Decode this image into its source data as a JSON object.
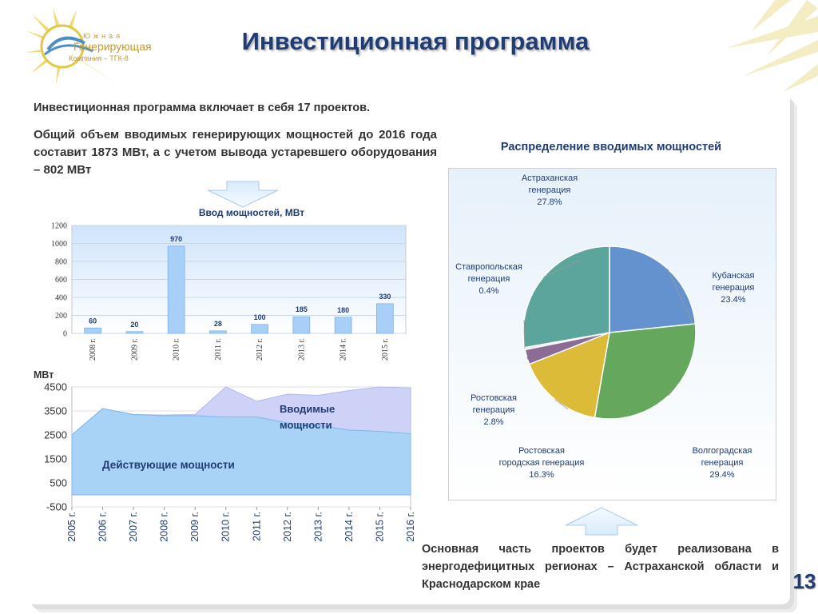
{
  "header": {
    "title": "Инвестиционная программа",
    "logo_text": [
      "Южная",
      "Генерирующая",
      "Компания – ТГК-8"
    ]
  },
  "intro": {
    "line1": "Инвестиционная программа включает в себя  17 проектов.",
    "line2": "Общий объем вводимых генерирующих мощностей до 2016 года составит 1873 МВт, а с учетом вывода устаревшего оборудования – 802 МВт"
  },
  "conclusion": "Основная часть проектов будет реализована в энергодефицитных регионах – Астраханской области и Краснодарском крае",
  "page_number": "13",
  "colors": {
    "title": "#1f3c73",
    "bar": "#a8cff7",
    "area_existing": "#a8d2f6",
    "area_new": "#cfd2f7",
    "pie": [
      "#6492cf",
      "#65a85d",
      "#dcbb38",
      "#8b6c96",
      "#dcdcdc",
      "#5ba59d"
    ]
  },
  "chart_data": [
    {
      "type": "bar",
      "title": "Ввод мощностей, МВт",
      "categories": [
        "2008 г.",
        "2009 г.",
        "2010 г.",
        "2011 г.",
        "2012 г.",
        "2013 г.",
        "2014 г.",
        "2015 г."
      ],
      "values": [
        60,
        20,
        970,
        28,
        100,
        185,
        180,
        330
      ],
      "data_labels": [
        "60",
        "20",
        "970",
        "28",
        "100",
        "185",
        "180",
        "330"
      ],
      "ylim": [
        0,
        1200
      ],
      "yticks": [
        "0",
        "200",
        "400",
        "600",
        "800",
        "1000",
        "1200"
      ],
      "grid": true
    },
    {
      "type": "area",
      "ylabel": "МВт",
      "x": [
        "2005 г.",
        "2006 г.",
        "2007 г.",
        "2008 г.",
        "2009 г.",
        "2010 г.",
        "2011 г.",
        "2012 г.",
        "2013 г.",
        "2014  г.",
        "2015 г.",
        "2016 г."
      ],
      "series": [
        {
          "name": "Действующие мощности",
          "values": [
            2500,
            3600,
            3350,
            3300,
            3300,
            3250,
            3250,
            3000,
            2900,
            2700,
            2650,
            2550
          ]
        },
        {
          "name": "Вводимые мощности",
          "values": [
            2500,
            3600,
            3350,
            3330,
            3350,
            4600,
            3900,
            4200,
            4150,
            4350,
            4550,
            4450
          ]
        }
      ],
      "ylim": [
        -500,
        4500
      ],
      "yticks": [
        "-500",
        "500",
        "1500",
        "2500",
        "3500",
        "4500"
      ]
    },
    {
      "type": "pie",
      "title": "Распределение вводимых мощностей",
      "slices": [
        {
          "label": [
            "Кубанская",
            "генерация"
          ],
          "value": 23.4,
          "value_label": "23.4%"
        },
        {
          "label": [
            "Волгоградская",
            "генерация"
          ],
          "value": 29.4,
          "value_label": "29.4%"
        },
        {
          "label": [
            "Ростовская",
            "городская генерация"
          ],
          "value": 16.3,
          "value_label": "16.3%"
        },
        {
          "label": [
            "Ростовская",
            "генерация"
          ],
          "value": 2.8,
          "value_label": "2.8%"
        },
        {
          "label": [
            "Ставропольская",
            "генерация"
          ],
          "value": 0.4,
          "value_label": "0.4%"
        },
        {
          "label": [
            "Астраханская",
            "генерация"
          ],
          "value": 27.8,
          "value_label": "27.8%"
        }
      ]
    }
  ]
}
